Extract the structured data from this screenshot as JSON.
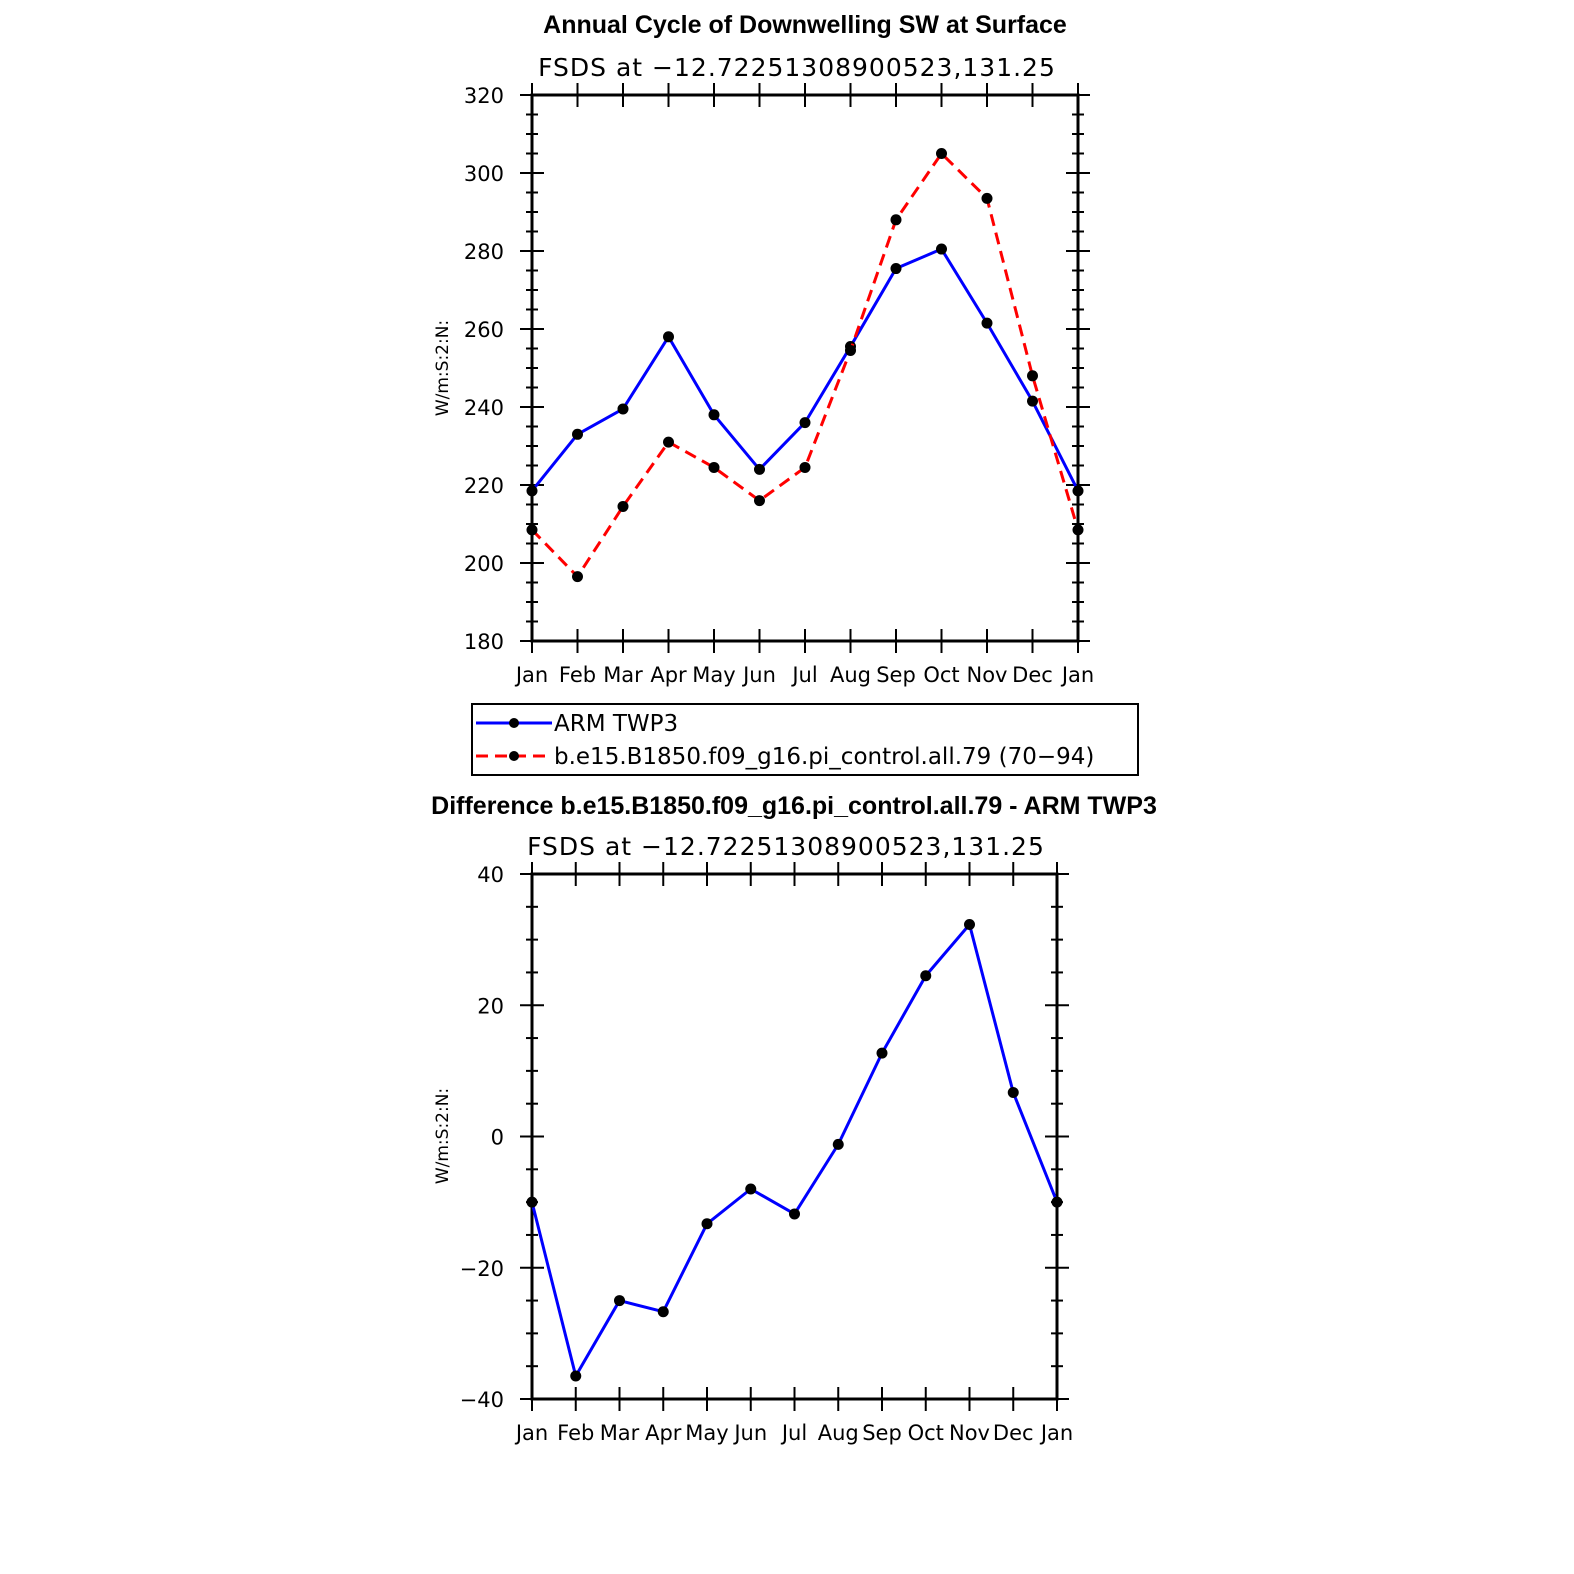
{
  "chart_data": [
    {
      "type": "line",
      "title": "Annual Cycle of Downwelling SW at Surface",
      "subtitle": "FSDS at −12.72251308900523,131.25",
      "ylabel": "W/m:S:2:N:",
      "xlabel": "",
      "categories": [
        "Jan",
        "Feb",
        "Mar",
        "Apr",
        "May",
        "Jun",
        "Jul",
        "Aug",
        "Sep",
        "Oct",
        "Nov",
        "Dec",
        "Jan"
      ],
      "ylim": [
        180,
        320
      ],
      "yticks": [
        "180",
        "200",
        "220",
        "240",
        "260",
        "280",
        "300",
        "320"
      ],
      "series": [
        {
          "name": "ARM TWP3",
          "color": "#0000ff",
          "dash": "solid",
          "values": [
            218.5,
            233,
            239.5,
            258,
            238,
            224,
            236,
            255.5,
            275.5,
            280.5,
            261.5,
            241.5,
            218.5
          ]
        },
        {
          "name": "b.e15.B1850.f09_g16.pi_control.all.79 (70−94)",
          "color": "#ff0000",
          "dash": "dashed",
          "values": [
            208.5,
            196.5,
            214.5,
            231,
            224.5,
            216,
            224.5,
            254.5,
            288,
            305,
            293.5,
            248,
            208.5
          ]
        }
      ],
      "legend": [
        "ARM TWP3",
        "b.e15.B1850.f09_g16.pi_control.all.79 (70−94)"
      ]
    },
    {
      "type": "line",
      "title": "Difference b.e15.B1850.f09_g16.pi_control.all.79 - ARM TWP3",
      "subtitle": "FSDS at −12.72251308900523,131.25",
      "ylabel": "W/m:S:2:N:",
      "xlabel": "",
      "categories": [
        "Jan",
        "Feb",
        "Mar",
        "Apr",
        "May",
        "Jun",
        "Jul",
        "Aug",
        "Sep",
        "Oct",
        "Nov",
        "Dec",
        "Jan"
      ],
      "ylim": [
        -40,
        40
      ],
      "yticks": [
        "−40",
        "−20",
        "0",
        "20",
        "40"
      ],
      "series": [
        {
          "name": "Difference",
          "color": "#0000ff",
          "dash": "solid",
          "values": [
            -10,
            -36.5,
            -25,
            -26.7,
            -13.3,
            -8,
            -11.8,
            -1.2,
            12.7,
            24.5,
            32.3,
            6.7,
            -10
          ]
        }
      ]
    }
  ]
}
